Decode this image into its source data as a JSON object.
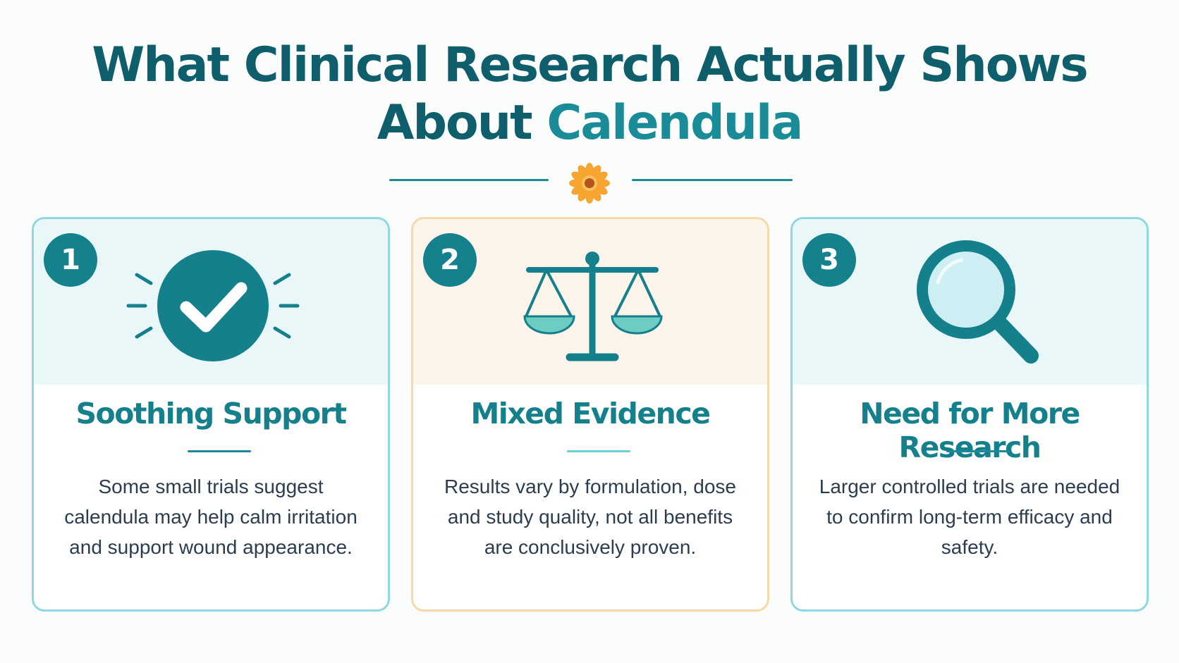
{
  "header": {
    "title_line1": "What Clinical Research Actually Shows",
    "title_line2_prefix": "About",
    "title_line2_accent": "Calendula",
    "divider_icon": "calendula-flower-icon"
  },
  "cards": [
    {
      "number": "1",
      "icon": "checkmark-circle-icon",
      "title": "Soothing Support",
      "body": "Some small trials suggest calendula may help calm irritation and support wound appearance."
    },
    {
      "number": "2",
      "icon": "balance-scale-icon",
      "title": "Mixed Evidence",
      "body": "Results vary by formulation, dose and study quality, not all benefits are conclusively proven."
    },
    {
      "number": "3",
      "icon": "magnifying-glass-icon",
      "title": "Need for More Research",
      "body": "Larger controlled trials are needed to confirm long-term efficacy and safety."
    }
  ],
  "colors": {
    "primary_teal": "#0f5e6b",
    "accent_teal": "#1a8c98",
    "card_border_teal": "#8fd8e0",
    "card_border_amber": "#f7d9a8",
    "flower_orange": "#f6a530"
  }
}
